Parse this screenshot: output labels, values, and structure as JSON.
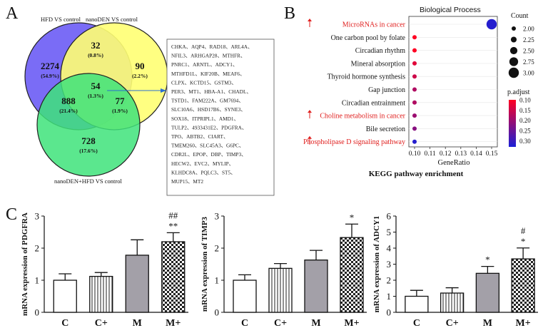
{
  "panel_labels": {
    "a": "A",
    "b": "B",
    "c": "C"
  },
  "venn": {
    "set_labels": [
      "HFD VS control",
      "nanoDEN VS control",
      "nanoDEN+HFD VS control"
    ],
    "regions": [
      {
        "id": "hfd-only",
        "count": "2274",
        "pct": "(54.9%)"
      },
      {
        "id": "hfd-nanoden",
        "count": "32",
        "pct": "(0.8%)"
      },
      {
        "id": "nanoden-only",
        "count": "90",
        "pct": "(2.2%)"
      },
      {
        "id": "all-three",
        "count": "54",
        "pct": "(1.3%)"
      },
      {
        "id": "hfd-combo",
        "count": "888",
        "pct": "(21.4%)"
      },
      {
        "id": "nanoden-combo",
        "count": "77",
        "pct": "(1.9%)"
      },
      {
        "id": "combo-only",
        "count": "728",
        "pct": "(17.6%)"
      }
    ],
    "colors": {
      "hfd": "#6b5cf5",
      "nanoden": "#ffff73",
      "combo": "#3ee37a"
    }
  },
  "gene_list": [
    "CHKA、AQP4、RAD18、ARL4A、",
    "NFIL3、ARHGAP28、MTHFR、",
    "PNRC1、ARNTL、ADCY1、",
    "MTHFD1L、KIF20B、MEAF6、",
    "CLPX、KCTD15、GSTM3、",
    "PER3、MT1、HBA-A1、CHADL、",
    "TSTD1、FAM222A、GM7694、",
    "SLC10A6、HSD17B6、SYNE3、",
    "SOX18、ITPRIPL1、AMD1、",
    "TULP2、4933431E2、PDGFRA、",
    "TPO、ABTB2、CIART、",
    "TMEM260、SLC45A3、G6PC、",
    "CDR2L、EPOP、DBP、TIMP3、",
    "HECW2、EVC2、MYLIP、",
    "KLHDC8A、PQLC3、ST5、",
    "MUP15、MT2"
  ],
  "chart_data": [
    {
      "type": "scatter",
      "title": "Biological   Process",
      "xlabel": "GeneRatio",
      "caption": "KEGG pathway enrichment",
      "categories": [
        "MicroRNAs in cancer",
        "One carbon pool by folate",
        "Circadian rhythm",
        "Mineral absorption",
        "Thyroid hormone synthesis",
        "Gap junction",
        "Circadian entrainment",
        "Choline metabolism in cancer",
        "Bile secretion",
        "Phospholipase D signaling pathway"
      ],
      "highlighted": [
        "MicroRNAs in cancer",
        "Choline metabolism in cancer",
        "Phospholipase D signaling pathway"
      ],
      "highlight_color": "#e0201f",
      "gene_ratio": [
        0.15,
        0.1,
        0.1,
        0.1,
        0.1,
        0.1,
        0.1,
        0.1,
        0.1,
        0.1
      ],
      "count": [
        3,
        2,
        2,
        2,
        2,
        2,
        2,
        2,
        2,
        2
      ],
      "p_adjust": [
        0.32,
        0.1,
        0.1,
        0.13,
        0.15,
        0.18,
        0.18,
        0.2,
        0.22,
        0.32
      ],
      "xlim": [
        0.1,
        0.15
      ],
      "xticks": [
        "0.10",
        "0.11",
        "0.12",
        "0.13",
        "0.14",
        "0.15"
      ],
      "count_legend": {
        "title": "Count",
        "values": [
          "2.00",
          "2.25",
          "2.50",
          "2.75",
          "3.00"
        ]
      },
      "padj_legend": {
        "title": "p.adjust",
        "ticks": [
          "0.10",
          "0.15",
          "0.20",
          "0.25",
          "0.30"
        ],
        "range": [
          0.1,
          0.33
        ],
        "colors": [
          "#ff0022",
          "#1b1fd6"
        ]
      }
    },
    {
      "type": "bar",
      "ylabel": "mRNA expression of PDGFRA",
      "categories": [
        "C",
        "C+",
        "M",
        "M+"
      ],
      "values": [
        1.0,
        1.12,
        1.78,
        2.2
      ],
      "errors": [
        0.2,
        0.12,
        0.48,
        0.28
      ],
      "ylim": [
        0,
        3
      ],
      "yticks": [
        0,
        1,
        2,
        3
      ],
      "annotations": {
        "M+": [
          "##",
          "**"
        ]
      }
    },
    {
      "type": "bar",
      "ylabel": "mRNA expression of TIMP3",
      "categories": [
        "C",
        "C+",
        "M",
        "M+"
      ],
      "values": [
        1.0,
        1.37,
        1.63,
        2.33
      ],
      "errors": [
        0.17,
        0.15,
        0.3,
        0.42
      ],
      "ylim": [
        0,
        3
      ],
      "yticks": [
        0,
        1,
        2,
        3
      ],
      "annotations": {
        "M+": [
          "*"
        ]
      }
    },
    {
      "type": "bar",
      "ylabel": "mRNA expression of ADCY1",
      "categories": [
        "C",
        "C+",
        "M",
        "M+"
      ],
      "values": [
        1.0,
        1.2,
        2.43,
        3.33
      ],
      "errors": [
        0.37,
        0.33,
        0.43,
        0.68
      ],
      "ylim": [
        0,
        6
      ],
      "yticks": [
        0,
        1,
        2,
        3,
        4,
        5,
        6
      ],
      "annotations": {
        "M": [
          "*"
        ],
        "M+": [
          "#",
          "*"
        ]
      }
    }
  ]
}
